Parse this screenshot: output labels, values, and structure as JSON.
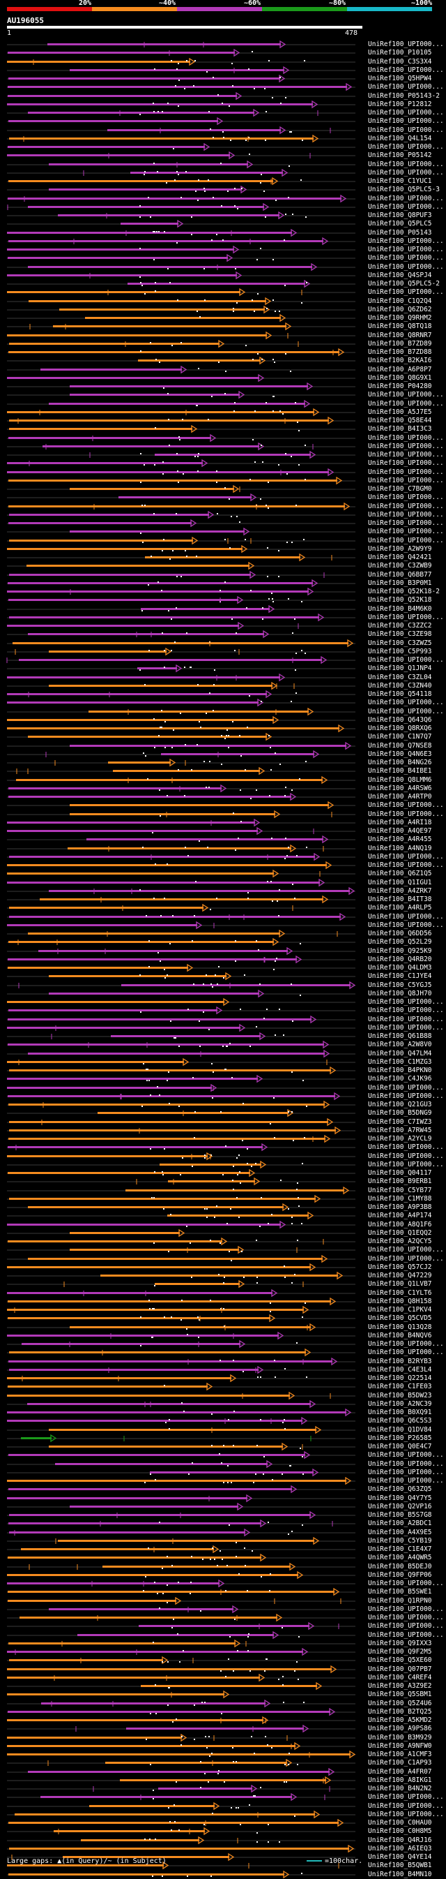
{
  "scale": {
    "labels": [
      "20%",
      "~40%",
      "~60%",
      "~80%",
      "~100%"
    ],
    "colors": [
      "#e01010",
      "#f58b1f",
      "#b23ab8",
      "#1b9a1b",
      "#18b8c8"
    ]
  },
  "query": {
    "id": "AU196055",
    "start": "1",
    "end": "478"
  },
  "footer": {
    "gap_legend": "Large gaps: ▲(in Query)/~ (in Subject)",
    "length_legend": "=100char."
  },
  "hits": [
    {
      "label": "UniRef100_UPI000...",
      "color": "purple"
    },
    {
      "label": "UniRef100_P10105",
      "color": "purple"
    },
    {
      "label": "UniRef100_C3S3X4",
      "color": "orange"
    },
    {
      "label": "UniRef100_UPI000...",
      "color": "purple"
    },
    {
      "label": "UniRef100_Q5HPW4",
      "color": "purple"
    },
    {
      "label": "UniRef100_UPI000...",
      "color": "purple"
    },
    {
      "label": "UniRef100_P05143-2",
      "color": "purple"
    },
    {
      "label": "UniRef100_P12812",
      "color": "purple"
    },
    {
      "label": "UniRef100_UPI000...",
      "color": "purple"
    },
    {
      "label": "UniRef100_UPI000...",
      "color": "purple"
    },
    {
      "label": "UniRef100_UPI000...",
      "color": "purple"
    },
    {
      "label": "UniRef100_Q4L154",
      "color": "orange"
    },
    {
      "label": "UniRef100_UPI000...",
      "color": "purple"
    },
    {
      "label": "UniRef100_P05142",
      "color": "purple"
    },
    {
      "label": "UniRef100_UPI000...",
      "color": "purple"
    },
    {
      "label": "UniRef100_UPI000...",
      "color": "purple"
    },
    {
      "label": "UniRef100_C1YUC1",
      "color": "orange"
    },
    {
      "label": "UniRef100_Q5PLC5-3",
      "color": "purple"
    },
    {
      "label": "UniRef100_UPI000...",
      "color": "purple"
    },
    {
      "label": "UniRef100_UPI000...",
      "color": "purple"
    },
    {
      "label": "UniRef100_Q8PUF3",
      "color": "purple"
    },
    {
      "label": "UniRef100_Q5PLC5",
      "color": "purple"
    },
    {
      "label": "UniRef100_P05143",
      "color": "purple"
    },
    {
      "label": "UniRef100_UPI000...",
      "color": "purple"
    },
    {
      "label": "UniRef100_UPI000...",
      "color": "purple"
    },
    {
      "label": "UniRef100_UPI000...",
      "color": "purple"
    },
    {
      "label": "UniRef100_UPI000...",
      "color": "purple"
    },
    {
      "label": "UniRef100_Q4SPJ4",
      "color": "purple"
    },
    {
      "label": "UniRef100_Q5PLC5-2",
      "color": "purple"
    },
    {
      "label": "UniRef100_UPI000...",
      "color": "orange"
    },
    {
      "label": "UniRef100_C1Q2Q4",
      "color": "orange"
    },
    {
      "label": "UniRef100_Q6ZD62",
      "color": "orange"
    },
    {
      "label": "UniRef100_Q9RHM2",
      "color": "orange"
    },
    {
      "label": "UniRef100_Q8TQ18",
      "color": "orange"
    },
    {
      "label": "UniRef100_Q8RNR7",
      "color": "orange"
    },
    {
      "label": "UniRef100_B7ZD89",
      "color": "orange"
    },
    {
      "label": "UniRef100_B7ZD88",
      "color": "orange"
    },
    {
      "label": "UniRef100_B2KAI6",
      "color": "orange"
    },
    {
      "label": "UniRef100_A6P8P7",
      "color": "purple"
    },
    {
      "label": "UniRef100_Q8G9X1",
      "color": "purple"
    },
    {
      "label": "UniRef100_P04280",
      "color": "purple"
    },
    {
      "label": "UniRef100_UPI000...",
      "color": "purple"
    },
    {
      "label": "UniRef100_UPI000...",
      "color": "purple"
    },
    {
      "label": "UniRef100_A5J7E5",
      "color": "orange"
    },
    {
      "label": "UniRef100_Q58E44",
      "color": "orange"
    },
    {
      "label": "UniRef100_B4I3C3",
      "color": "orange"
    },
    {
      "label": "UniRef100_UPI000...",
      "color": "purple"
    },
    {
      "label": "UniRef100_UPI000...",
      "color": "purple"
    },
    {
      "label": "UniRef100_UPI000...",
      "color": "purple"
    },
    {
      "label": "UniRef100_UPI000...",
      "color": "purple"
    },
    {
      "label": "UniRef100_UPI000...",
      "color": "purple"
    },
    {
      "label": "UniRef100_UPI000...",
      "color": "orange"
    },
    {
      "label": "UniRef100_C7BGM0",
      "color": "orange"
    },
    {
      "label": "UniRef100_UPI000...",
      "color": "purple"
    },
    {
      "label": "UniRef100_UPI000...",
      "color": "orange"
    },
    {
      "label": "UniRef100_UPI000...",
      "color": "purple"
    },
    {
      "label": "UniRef100_UPI000...",
      "color": "purple"
    },
    {
      "label": "UniRef100_UPI000...",
      "color": "purple"
    },
    {
      "label": "UniRef100_UPI000...",
      "color": "orange"
    },
    {
      "label": "UniRef100_A2W9Y9",
      "color": "orange"
    },
    {
      "label": "UniRef100_Q42421",
      "color": "orange"
    },
    {
      "label": "UniRef100_C3ZWB9",
      "color": "orange"
    },
    {
      "label": "UniRef100_Q6BB77",
      "color": "purple"
    },
    {
      "label": "UniRef100_B3P0M1",
      "color": "purple"
    },
    {
      "label": "UniRef100_Q52K18-2",
      "color": "purple"
    },
    {
      "label": "UniRef100_Q52K18",
      "color": "purple"
    },
    {
      "label": "UniRef100_B4M6K0",
      "color": "purple"
    },
    {
      "label": "UniRef100_UPI000...",
      "color": "purple"
    },
    {
      "label": "UniRef100_C3ZZC2",
      "color": "purple"
    },
    {
      "label": "UniRef100_C3ZE98",
      "color": "purple"
    },
    {
      "label": "UniRef100_C3ZWZ5",
      "color": "orange"
    },
    {
      "label": "UniRef100_C5P993",
      "color": "orange"
    },
    {
      "label": "UniRef100_UPI000...",
      "color": "purple"
    },
    {
      "label": "UniRef100_Q1JNP4",
      "color": "purple"
    },
    {
      "label": "UniRef100_C3ZL04",
      "color": "purple"
    },
    {
      "label": "UniRef100_C3ZN40",
      "color": "orange"
    },
    {
      "label": "UniRef100_Q54118",
      "color": "purple"
    },
    {
      "label": "UniRef100_UPI000...",
      "color": "purple"
    },
    {
      "label": "UniRef100_UPI000...",
      "color": "orange"
    },
    {
      "label": "UniRef100_Q643Q6",
      "color": "orange"
    },
    {
      "label": "UniRef100_Q8RXQ6",
      "color": "orange"
    },
    {
      "label": "UniRef100_C1N7Q7",
      "color": "orange"
    },
    {
      "label": "UniRef100_Q7NSE8",
      "color": "purple"
    },
    {
      "label": "UniRef100_Q4N6E3",
      "color": "purple"
    },
    {
      "label": "UniRef100_B4NG26",
      "color": "orange"
    },
    {
      "label": "UniRef100_B4IBE1",
      "color": "orange"
    },
    {
      "label": "UniRef100_Q8LMM6",
      "color": "orange"
    },
    {
      "label": "UniRef100_A4RSW6",
      "color": "purple"
    },
    {
      "label": "UniRef100_A4RTP0",
      "color": "purple"
    },
    {
      "label": "UniRef100_UPI000...",
      "color": "orange"
    },
    {
      "label": "UniRef100_UPI000...",
      "color": "orange"
    },
    {
      "label": "UniRef100_A4RI18",
      "color": "purple"
    },
    {
      "label": "UniRef100_A4QE97",
      "color": "purple"
    },
    {
      "label": "UniRef100_A4R455",
      "color": "purple"
    },
    {
      "label": "UniRef100_A4NQ19",
      "color": "orange"
    },
    {
      "label": "UniRef100_UPI000...",
      "color": "purple"
    },
    {
      "label": "UniRef100_UPI000...",
      "color": "orange"
    },
    {
      "label": "UniRef100_Q6Z1Q5",
      "color": "orange"
    },
    {
      "label": "UniRef100_Q1IGU1",
      "color": "purple"
    },
    {
      "label": "UniRef100_A4ZRK7",
      "color": "purple"
    },
    {
      "label": "UniRef100_B4IT38",
      "color": "orange"
    },
    {
      "label": "UniRef100_A4RLP5",
      "color": "orange"
    },
    {
      "label": "UniRef100_UPI000...",
      "color": "purple"
    },
    {
      "label": "UniRef100_UPI000...",
      "color": "purple"
    },
    {
      "label": "UniRef100_Q6DD56",
      "color": "orange"
    },
    {
      "label": "UniRef100_Q52L29",
      "color": "orange"
    },
    {
      "label": "UniRef100_Q925K9",
      "color": "purple"
    },
    {
      "label": "UniRef100_Q4RB20",
      "color": "purple"
    },
    {
      "label": "UniRef100_Q4LDM3",
      "color": "orange"
    },
    {
      "label": "UniRef100_C1JYE4",
      "color": "orange"
    },
    {
      "label": "UniRef100_C5YGJ5",
      "color": "purple"
    },
    {
      "label": "UniRef100_Q8JH70",
      "color": "purple"
    },
    {
      "label": "UniRef100_UPI000...",
      "color": "orange"
    },
    {
      "label": "UniRef100_UPI000...",
      "color": "purple"
    },
    {
      "label": "UniRef100_UPI000...",
      "color": "purple"
    },
    {
      "label": "UniRef100_UPI000...",
      "color": "purple"
    },
    {
      "label": "UniRef100_Q61B88",
      "color": "purple"
    },
    {
      "label": "UniRef100_A2W8V0",
      "color": "purple"
    },
    {
      "label": "UniRef100_Q47LM4",
      "color": "purple"
    },
    {
      "label": "UniRef100_C1MZG3",
      "color": "orange"
    },
    {
      "label": "UniRef100_B4PKN0",
      "color": "orange"
    },
    {
      "label": "UniRef100_C4JK96",
      "color": "purple"
    },
    {
      "label": "UniRef100_UPI000...",
      "color": "purple"
    },
    {
      "label": "UniRef100_UPI000...",
      "color": "purple"
    },
    {
      "label": "UniRef100_Q21GU3",
      "color": "orange"
    },
    {
      "label": "UniRef100_B5DNG9",
      "color": "orange"
    },
    {
      "label": "UniRef100_C7IWZ3",
      "color": "orange"
    },
    {
      "label": "UniRef100_A7RW45",
      "color": "orange"
    },
    {
      "label": "UniRef100_A2YCL9",
      "color": "orange"
    },
    {
      "label": "UniRef100_UPI000...",
      "color": "purple"
    },
    {
      "label": "UniRef100_UPI000...",
      "color": "orange"
    },
    {
      "label": "UniRef100_UPI000...",
      "color": "orange"
    },
    {
      "label": "UniRef100_Q04117",
      "color": "orange"
    },
    {
      "label": "UniRef100_B9ERB1",
      "color": "orange"
    },
    {
      "label": "UniRef100_C5YB77",
      "color": "orange"
    },
    {
      "label": "UniRef100_C1MY88",
      "color": "orange"
    },
    {
      "label": "UniRef100_A9P3B8",
      "color": "orange"
    },
    {
      "label": "UniRef100_A4P174",
      "color": "orange"
    },
    {
      "label": "UniRef100_A8Q1F6",
      "color": "purple"
    },
    {
      "label": "UniRef100_Q1EQQ2",
      "color": "orange"
    },
    {
      "label": "UniRef100_A2QCY5",
      "color": "orange"
    },
    {
      "label": "UniRef100_UPI000...",
      "color": "orange"
    },
    {
      "label": "UniRef100_UPI000...",
      "color": "orange"
    },
    {
      "label": "UniRef100_Q57CJ2",
      "color": "orange"
    },
    {
      "label": "UniRef100_Q47229",
      "color": "orange"
    },
    {
      "label": "UniRef100_Q1LVB7",
      "color": "orange"
    },
    {
      "label": "UniRef100_C1YLT6",
      "color": "purple"
    },
    {
      "label": "UniRef100_Q8H158",
      "color": "orange"
    },
    {
      "label": "UniRef100_C1PKV4",
      "color": "orange"
    },
    {
      "label": "UniRef100_Q5CVD5",
      "color": "orange"
    },
    {
      "label": "UniRef100_Q13Q28",
      "color": "orange"
    },
    {
      "label": "UniRef100_B4NQV6",
      "color": "purple"
    },
    {
      "label": "UniRef100_UPI000...",
      "color": "purple"
    },
    {
      "label": "UniRef100_UPI000...",
      "color": "orange"
    },
    {
      "label": "UniRef100_B2RYB3",
      "color": "purple"
    },
    {
      "label": "UniRef100_C4E3L4",
      "color": "purple"
    },
    {
      "label": "UniRef100_Q22514",
      "color": "orange"
    },
    {
      "label": "UniRef100_C1FE03",
      "color": "orange"
    },
    {
      "label": "UniRef100_B5DW23",
      "color": "orange"
    },
    {
      "label": "UniRef100_A2NC39",
      "color": "purple"
    },
    {
      "label": "UniRef100_B0XQ91",
      "color": "purple"
    },
    {
      "label": "UniRef100_Q6C5S3",
      "color": "purple"
    },
    {
      "label": "UniRef100_Q1DV84",
      "color": "orange"
    },
    {
      "label": "UniRef100_P26585",
      "color": "green"
    },
    {
      "label": "UniRef100_Q0E4C7",
      "color": "orange"
    },
    {
      "label": "UniRef100_UPI000...",
      "color": "purple"
    },
    {
      "label": "UniRef100_UPI000...",
      "color": "purple"
    },
    {
      "label": "UniRef100_UPI000...",
      "color": "purple"
    },
    {
      "label": "UniRef100_UPI000...",
      "color": "orange"
    },
    {
      "label": "UniRef100_Q63ZQ5",
      "color": "purple"
    },
    {
      "label": "UniRef100_Q4Y7Y5",
      "color": "purple"
    },
    {
      "label": "UniRef100_Q2VP16",
      "color": "purple"
    },
    {
      "label": "UniRef100_B5S7G8",
      "color": "purple"
    },
    {
      "label": "UniRef100_A2BDC1",
      "color": "purple"
    },
    {
      "label": "UniRef100_A4X9E5",
      "color": "purple"
    },
    {
      "label": "UniRef100_C5YB19",
      "color": "orange"
    },
    {
      "label": "UniRef100_C1E4X7",
      "color": "orange"
    },
    {
      "label": "UniRef100_A4QWR5",
      "color": "orange"
    },
    {
      "label": "UniRef100_B5DEJ0",
      "color": "orange"
    },
    {
      "label": "UniRef100_Q9FP06",
      "color": "orange"
    },
    {
      "label": "UniRef100_UPI000...",
      "color": "purple"
    },
    {
      "label": "UniRef100_B5SWE1",
      "color": "orange"
    },
    {
      "label": "UniRef100_Q1RPN0",
      "color": "orange"
    },
    {
      "label": "UniRef100_UPI000...",
      "color": "purple"
    },
    {
      "label": "UniRef100_UPI000...",
      "color": "orange"
    },
    {
      "label": "UniRef100_UPI000...",
      "color": "purple"
    },
    {
      "label": "UniRef100_UPI000...",
      "color": "purple"
    },
    {
      "label": "UniRef100_Q9IXX3",
      "color": "orange"
    },
    {
      "label": "UniRef100_Q9F2M5",
      "color": "purple"
    },
    {
      "label": "UniRef100_Q5XE60",
      "color": "orange"
    },
    {
      "label": "UniRef100_Q07PB7",
      "color": "orange"
    },
    {
      "label": "UniRef100_C4REF4",
      "color": "orange"
    },
    {
      "label": "UniRef100_A3Z9E2",
      "color": "orange"
    },
    {
      "label": "UniRef100_Q5SBM1",
      "color": "orange"
    },
    {
      "label": "UniRef100_Q5Z4U6",
      "color": "purple"
    },
    {
      "label": "UniRef100_B2TQ25",
      "color": "purple"
    },
    {
      "label": "UniRef100_A5KMD2",
      "color": "orange"
    },
    {
      "label": "UniRef100_A9PS86",
      "color": "purple"
    },
    {
      "label": "UniRef100_B3M929",
      "color": "orange"
    },
    {
      "label": "UniRef100_A9NFW0",
      "color": "orange"
    },
    {
      "label": "UniRef100_A1CMF3",
      "color": "orange"
    },
    {
      "label": "UniRef100_C1AP93",
      "color": "orange"
    },
    {
      "label": "UniRef100_A4FR07",
      "color": "purple"
    },
    {
      "label": "UniRef100_A8IKG1",
      "color": "orange"
    },
    {
      "label": "UniRef100_B4N2N2",
      "color": "purple"
    },
    {
      "label": "UniRef100_UPI000...",
      "color": "purple"
    },
    {
      "label": "UniRef100_UPI000...",
      "color": "orange"
    },
    {
      "label": "UniRef100_UPI000...",
      "color": "orange"
    },
    {
      "label": "UniRef100_C0HAU0",
      "color": "orange"
    },
    {
      "label": "UniRef100_C0H8M5",
      "color": "orange"
    },
    {
      "label": "UniRef100_Q4RJ16",
      "color": "orange"
    },
    {
      "label": "UniRef100_A6IEQ3",
      "color": "orange"
    },
    {
      "label": "UniRef100_Q4YE14",
      "color": "orange"
    },
    {
      "label": "UniRef100_B5QWB1",
      "color": "orange"
    },
    {
      "label": "UniRef100_B4MN10",
      "color": "orange"
    }
  ]
}
